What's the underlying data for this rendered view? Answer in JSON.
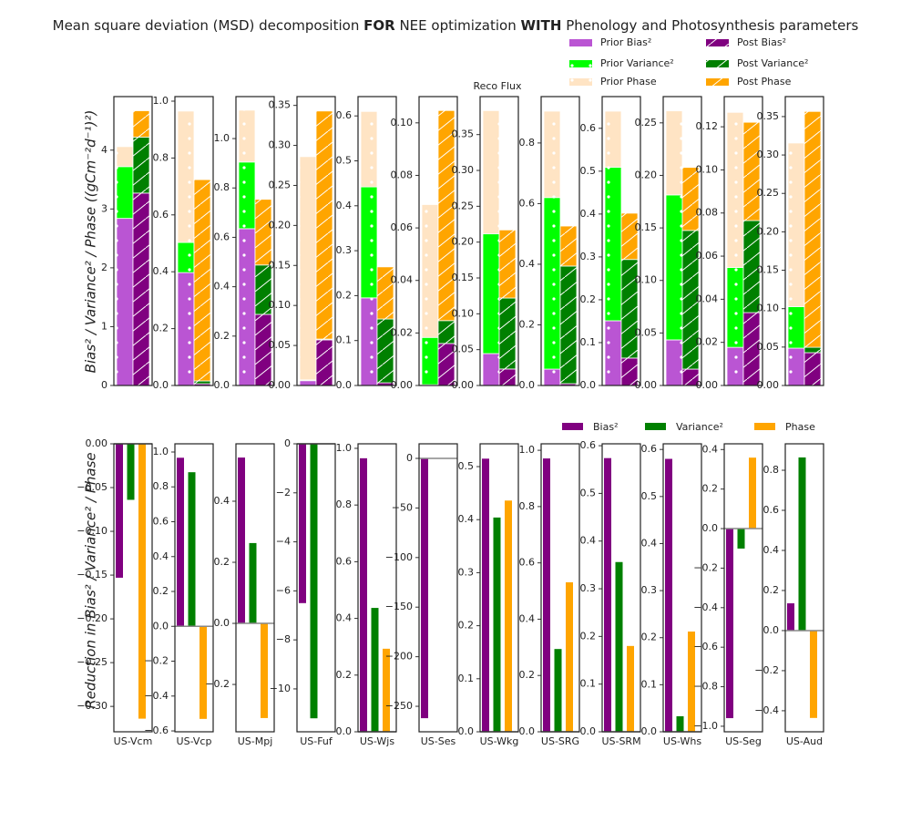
{
  "chart_data": [
    {
      "type": "stacked_bar",
      "title": [
        "Mean square deviation (MSD) decomposition",
        "FOR",
        "NEE optimization",
        "WITH",
        "Phenology and Photosynthesis parameters"
      ],
      "subtitle": "Reco Flux",
      "ylabel": "Bias² / Variance² / Phase ((gCm⁻²d⁻¹)²)",
      "series": [
        {
          "name": "Prior Bias²",
          "color": "#ba55d3",
          "values": [
            2.84,
            0.397,
            0.635,
            0.006,
            0.195,
            0.0003,
            0.0445,
            0.054,
            0.151,
            0.0434,
            0.0177,
            0.0486
          ]
        },
        {
          "name": "Prior Variance²",
          "color": "#00ff00",
          "values": [
            0.88,
            0.106,
            0.27,
            0.001,
            0.247,
            0.018,
            0.167,
            0.566,
            0.358,
            0.138,
            0.037,
            0.054
          ]
        },
        {
          "name": "Prior Phase",
          "color": "#ffe4c4",
          "values": [
            0.34,
            0.462,
            0.21,
            0.279,
            0.168,
            0.0506,
            0.172,
            0.285,
            0.131,
            0.08,
            0.072,
            0.213
          ]
        },
        {
          "name": "Post Bias²",
          "color": "#800080",
          "values": [
            3.27,
            0.006,
            0.288,
            0.057,
            0.006,
            0.016,
            0.023,
            0.006,
            0.064,
            0.0156,
            0.0338,
            0.0427
          ]
        },
        {
          "name": "Post Variance²",
          "color": "#008000",
          "values": [
            0.95,
            0.01,
            0.2,
            0.001,
            0.142,
            0.0087,
            0.099,
            0.388,
            0.23,
            0.132,
            0.0427,
            0.007
          ]
        },
        {
          "name": "Post Phase",
          "color": "#ffa500",
          "values": [
            0.45,
            0.708,
            0.266,
            0.285,
            0.116,
            0.08,
            0.095,
            0.132,
            0.108,
            0.06,
            0.0456,
            0.307
          ]
        }
      ],
      "panels": [
        {
          "ylim": [
            0,
            4.91
          ],
          "yticks": [
            0,
            1,
            2,
            3,
            4
          ]
        },
        {
          "ylim": [
            0,
            1.016
          ],
          "yticks": [
            {
              "value": 0,
              "label": "0.0"
            },
            0.2,
            0.4,
            0.6,
            0.8,
            {
              "value": 1,
              "label": "1.0"
            }
          ]
        },
        {
          "ylim": [
            0,
            1.17
          ],
          "yticks": [
            {
              "value": 0,
              "label": "0.0"
            },
            0.2,
            0.4,
            0.6,
            0.8,
            {
              "value": 1,
              "label": "1.0"
            }
          ]
        },
        {
          "ylim": [
            0,
            0.361
          ],
          "yticks": [
            {
              "value": 0,
              "label": "0.00"
            },
            0.05,
            {
              "value": 0.1,
              "label": "0.10"
            },
            0.15,
            {
              "value": 0.2,
              "label": "0.20"
            },
            0.25,
            {
              "value": 0.3,
              "label": "0.30"
            },
            0.35
          ]
        },
        {
          "ylim": [
            0,
            0.643
          ],
          "yticks": [
            {
              "value": 0,
              "label": "0.0"
            },
            0.1,
            0.2,
            0.3,
            0.4,
            0.5,
            0.6
          ]
        },
        {
          "ylim": [
            0,
            0.11
          ],
          "yticks": [
            {
              "value": 0,
              "label": "0.00"
            },
            0.02,
            0.04,
            0.06,
            0.08,
            {
              "value": 0.1,
              "label": "0.10"
            }
          ]
        },
        {
          "ylim": [
            0,
            0.403
          ],
          "yticks": [
            {
              "value": 0,
              "label": "0.00"
            },
            0.05,
            {
              "value": 0.1,
              "label": "0.10"
            },
            0.15,
            {
              "value": 0.2,
              "label": "0.20"
            },
            0.25,
            {
              "value": 0.3,
              "label": "0.30"
            },
            0.35
          ]
        },
        {
          "ylim": [
            0,
            0.953
          ],
          "yticks": [
            {
              "value": 0,
              "label": "0.0"
            },
            0.2,
            0.4,
            0.6,
            0.8
          ]
        },
        {
          "ylim": [
            0,
            0.674
          ],
          "yticks": [
            {
              "value": 0,
              "label": "0.0"
            },
            0.1,
            0.2,
            0.3,
            0.4,
            0.5,
            0.6
          ]
        },
        {
          "ylim": [
            0,
            0.275
          ],
          "yticks": [
            {
              "value": 0,
              "label": "0.00"
            },
            0.05,
            {
              "value": 0.1,
              "label": "0.10"
            },
            0.15,
            {
              "value": 0.2,
              "label": "0.20"
            },
            0.25
          ]
        },
        {
          "ylim": [
            0,
            0.134
          ],
          "yticks": [
            {
              "value": 0,
              "label": "0.00"
            },
            0.02,
            0.04,
            0.06,
            0.08,
            {
              "value": 0.1,
              "label": "0.10"
            },
            0.12
          ]
        },
        {
          "ylim": [
            0,
            0.376
          ],
          "yticks": [
            {
              "value": 0,
              "label": "0.00"
            },
            0.05,
            {
              "value": 0.1,
              "label": "0.10"
            },
            0.15,
            {
              "value": 0.2,
              "label": "0.20"
            },
            0.25,
            {
              "value": 0.3,
              "label": "0.30"
            },
            0.35
          ]
        }
      ]
    },
    {
      "type": "bar",
      "ylabel": "Reduction in Bias² / Variance² / Phase",
      "categories": [
        "US-Vcm",
        "US-Vcp",
        "US-Mpj",
        "US-Fuf",
        "US-Wjs",
        "US-Ses",
        "US-Wkg",
        "US-SRG",
        "US-SRM",
        "US-Whs",
        "US-Seg",
        "US-Aud"
      ],
      "series": [
        {
          "name": "Bias²",
          "color": "#800080",
          "values": [
            -0.153,
            0.967,
            0.543,
            -6.5,
            0.965,
            -262,
            0.515,
            0.971,
            0.574,
            0.58,
            -0.959,
            0.136
          ]
        },
        {
          "name": "Variance²",
          "color": "#008000",
          "values": [
            -0.064,
            0.884,
            0.263,
            -11.2,
            0.437,
            0,
            0.404,
            0.294,
            0.356,
            0.033,
            -0.101,
            0.864
          ]
        },
        {
          "name": "Phase",
          "color": "#ffa500",
          "values": [
            -0.314,
            -0.531,
            -0.31,
            0,
            0.293,
            0,
            0.436,
            0.531,
            0.18,
            0.213,
            0.359,
            -0.436
          ]
        }
      ],
      "panels": [
        {
          "ylim": [
            -0.329,
            0
          ],
          "yticks": [
            {
              "value": 0,
              "label": "0.00"
            },
            {
              "value": -0.05,
              "label": "−0.05"
            },
            {
              "value": -0.1,
              "label": "−0.10"
            },
            {
              "value": -0.15,
              "label": "−0.15"
            },
            {
              "value": -0.2,
              "label": "−0.20"
            },
            {
              "value": -0.25,
              "label": "−0.25"
            },
            {
              "value": -0.3,
              "label": "−0.30"
            }
          ]
        },
        {
          "ylim": [
            -0.605,
            1.047
          ],
          "yticks": [
            {
              "value": -0.6,
              "label": "−0.6"
            },
            {
              "value": -0.4,
              "label": "−0.4"
            },
            {
              "value": -0.2,
              "label": "−0.2"
            },
            {
              "value": 0,
              "label": "0.0"
            },
            0.2,
            0.4,
            0.6,
            0.8,
            {
              "value": 1,
              "label": "1.0"
            }
          ]
        },
        {
          "ylim": [
            -0.355,
            0.588
          ],
          "yticks": [
            {
              "value": -0.2,
              "label": "−0.2"
            },
            {
              "value": 0,
              "label": "0.0"
            },
            0.2,
            0.4
          ]
        },
        {
          "ylim": [
            -11.75,
            0
          ],
          "yticks": [
            {
              "value": -10,
              "label": "−10"
            },
            {
              "value": -8,
              "label": "−8"
            },
            {
              "value": -6,
              "label": "−6"
            },
            {
              "value": -4,
              "label": "−4"
            },
            {
              "value": -2,
              "label": "−2"
            },
            0
          ]
        },
        {
          "ylim": [
            0,
            1.016
          ],
          "yticks": [
            {
              "value": 0,
              "label": "0.0"
            },
            0.2,
            0.4,
            0.6,
            0.8,
            {
              "value": 1,
              "label": "1.0"
            }
          ]
        },
        {
          "ylim": [
            -275.7,
            14.7
          ],
          "yticks": [
            {
              "value": -250,
              "label": "−250"
            },
            {
              "value": -200,
              "label": "−200"
            },
            {
              "value": -150,
              "label": "−150"
            },
            {
              "value": -100,
              "label": "−100"
            },
            {
              "value": -50,
              "label": "−50"
            },
            0
          ]
        },
        {
          "ylim": [
            0,
            0.543
          ],
          "yticks": [
            {
              "value": 0,
              "label": "0.0"
            },
            0.1,
            0.2,
            0.3,
            0.4,
            0.5
          ]
        },
        {
          "ylim": [
            0,
            1.023
          ],
          "yticks": [
            {
              "value": 0,
              "label": "0.0"
            },
            0.2,
            0.4,
            0.6,
            0.8,
            {
              "value": 1,
              "label": "1.0"
            }
          ]
        },
        {
          "ylim": [
            0,
            0.604
          ],
          "yticks": [
            {
              "value": 0,
              "label": "0.0"
            },
            0.1,
            0.2,
            0.3,
            0.4,
            0.5,
            0.6
          ]
        },
        {
          "ylim": [
            0,
            0.612
          ],
          "yticks": [
            {
              "value": 0,
              "label": "0.0"
            },
            0.1,
            0.2,
            0.3,
            0.4,
            0.5,
            0.6
          ]
        },
        {
          "ylim": [
            -1.028,
            0.429
          ],
          "yticks": [
            {
              "value": -1,
              "label": "−1.0"
            },
            {
              "value": -0.8,
              "label": "−0.8"
            },
            {
              "value": -0.6,
              "label": "−0.6"
            },
            {
              "value": -0.4,
              "label": "−0.4"
            },
            {
              "value": -0.2,
              "label": "−0.2"
            },
            {
              "value": 0,
              "label": "0.0"
            },
            0.2,
            0.4
          ]
        },
        {
          "ylim": [
            -0.505,
            0.932
          ],
          "yticks": [
            {
              "value": -0.4,
              "label": "−0.4"
            },
            {
              "value": -0.2,
              "label": "−0.2"
            },
            {
              "value": 0,
              "label": "0.0"
            },
            0.2,
            0.4,
            0.6,
            0.8
          ]
        }
      ]
    }
  ]
}
